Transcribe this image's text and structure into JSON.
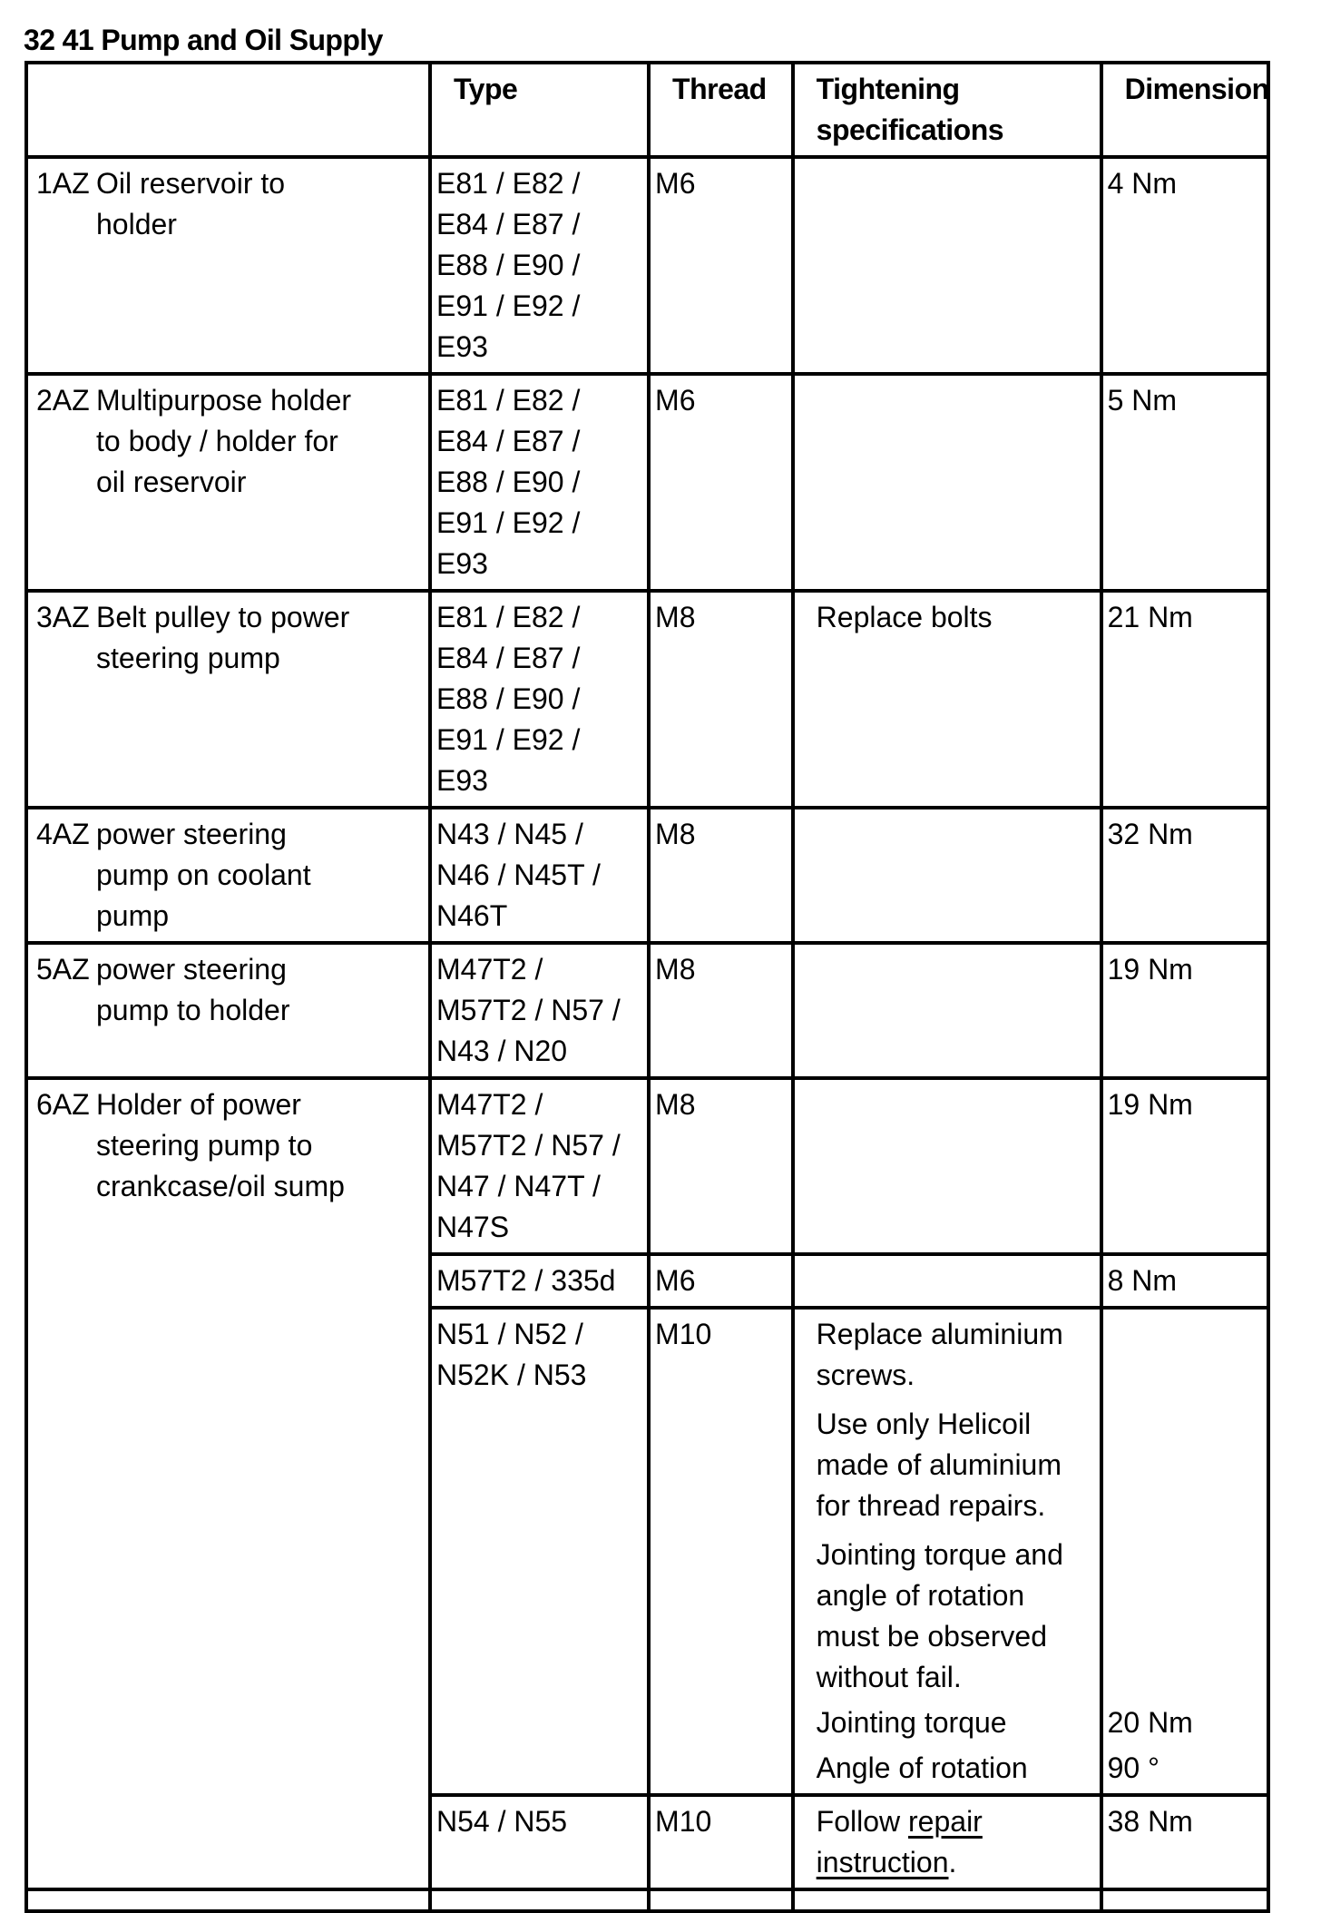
{
  "title": "32 41 Pump and Oil Supply",
  "headers": {
    "col1": "",
    "type": "Type",
    "thread": "Thread",
    "tightening": [
      "Tightening",
      "specifications"
    ],
    "dimension": "Dimension"
  },
  "rows": [
    {
      "id": "1AZ",
      "desc": [
        "Oil reservoir to",
        "holder"
      ],
      "entries": [
        {
          "type": [
            "E81 / E82 /",
            "E84 / E87 /",
            "E88 / E90 /",
            "E91 / E92 /",
            "E93"
          ],
          "thread": "M6",
          "spec": [],
          "dim": [
            "4 Nm"
          ]
        }
      ]
    },
    {
      "id": "2AZ",
      "desc": [
        "Multipurpose holder",
        "to body / holder for",
        "oil reservoir"
      ],
      "entries": [
        {
          "type": [
            "E81 / E82 /",
            "E84 / E87 /",
            "E88 / E90 /",
            "E91 / E92 /",
            "E93"
          ],
          "thread": "M6",
          "spec": [],
          "dim": [
            "5 Nm"
          ]
        }
      ]
    },
    {
      "id": "3AZ",
      "desc": [
        "Belt pulley to power",
        "steering pump"
      ],
      "entries": [
        {
          "type": [
            "E81 / E82 /",
            "E84 / E87 /",
            "E88 / E90 /",
            "E91 / E92 /",
            "E93"
          ],
          "thread": "M8",
          "spec": [
            [
              "Replace bolts"
            ]
          ],
          "dim": [
            "21 Nm"
          ]
        }
      ]
    },
    {
      "id": "4AZ",
      "desc": [
        "power steering",
        "pump on coolant",
        "pump"
      ],
      "entries": [
        {
          "type": [
            "N43 / N45 /",
            "N46 / N45T /",
            "N46T"
          ],
          "thread": "M8",
          "spec": [],
          "dim": [
            "32 Nm"
          ]
        }
      ]
    },
    {
      "id": "5AZ",
      "desc": [
        "power steering",
        "pump to holder"
      ],
      "entries": [
        {
          "type": [
            "M47T2 /",
            "M57T2 / N57 /",
            "N43 / N20"
          ],
          "thread": "M8",
          "spec": [],
          "dim": [
            "19 Nm"
          ]
        }
      ]
    },
    {
      "id": "6AZ",
      "desc": [
        "Holder of power",
        "steering pump to",
        "crankcase/oil sump"
      ],
      "entries": [
        {
          "type": [
            "M47T2 /",
            "M57T2 / N57 /",
            "N47 / N47T /",
            "N47S"
          ],
          "thread": "M8",
          "spec": [],
          "dim": [
            "19 Nm"
          ]
        },
        {
          "type": [
            "M57T2 / 335d"
          ],
          "thread": "M6",
          "spec": [],
          "dim": [
            "8 Nm"
          ]
        },
        {
          "type": [
            "N51 / N52 /",
            "N52K / N53"
          ],
          "thread": "M10",
          "spec": [
            [
              "Replace aluminium",
              "screws."
            ],
            [
              "Use only Helicoil",
              "made of aluminium",
              "for thread repairs."
            ],
            [
              "Jointing torque and",
              "angle of rotation",
              "must be observed",
              "without fail."
            ],
            [
              "Jointing torque"
            ],
            [
              "Angle of rotation"
            ]
          ],
          "dim": [
            "20 Nm",
            "90 °"
          ],
          "dim_align": "bottom"
        },
        {
          "type": [
            "N54 / N55"
          ],
          "thread": "M10",
          "spec_link": {
            "before": "Follow ",
            "link_lines": [
              "repair",
              "instruction"
            ],
            "after": "."
          },
          "dim": [
            "38 Nm"
          ]
        }
      ]
    }
  ]
}
